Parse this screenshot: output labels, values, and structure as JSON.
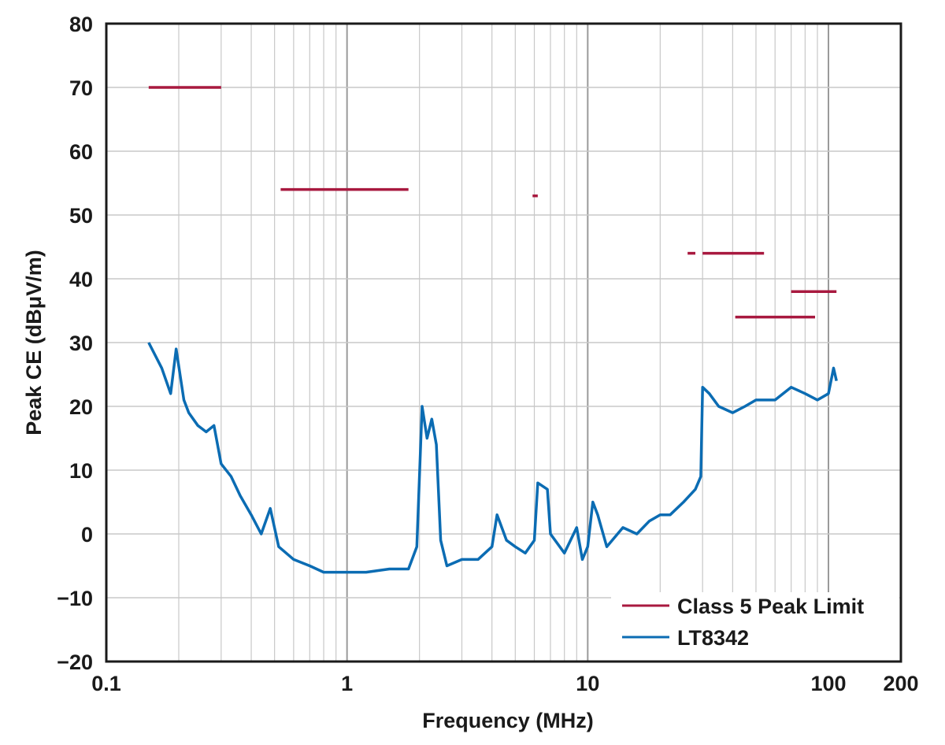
{
  "chart_data": {
    "type": "line",
    "xlabel": "Frequency (MHz)",
    "ylabel": "Peak CE (dBμV/m)",
    "x_scale": "log",
    "xlim": [
      0.1,
      200
    ],
    "ylim": [
      -20,
      80
    ],
    "x_ticks": [
      0.1,
      1,
      10,
      100,
      200
    ],
    "x_tick_labels": [
      "0.1",
      "1",
      "10",
      "100",
      "200"
    ],
    "y_ticks": [
      -20,
      -10,
      0,
      10,
      20,
      30,
      40,
      50,
      60,
      70,
      80
    ],
    "y_tick_labels": [
      "−20",
      "−10",
      "0",
      "10",
      "20",
      "30",
      "40",
      "50",
      "60",
      "70",
      "80"
    ],
    "grid": true,
    "legend_position": "bottom-right",
    "colors": {
      "limit": "#a8193f",
      "measurement": "#0b6cb3",
      "grid": "#c8c8c8",
      "axis": "#1a1a1a"
    },
    "series": [
      {
        "name": "Class 5 Peak Limit",
        "style": "segments",
        "segments": [
          {
            "x_start": 0.15,
            "x_end": 0.3,
            "y": 70
          },
          {
            "x_start": 0.53,
            "x_end": 1.8,
            "y": 54
          },
          {
            "x_start": 5.9,
            "x_end": 6.2,
            "y": 53
          },
          {
            "x_start": 26,
            "x_end": 28,
            "y": 44
          },
          {
            "x_start": 30,
            "x_end": 54,
            "y": 44
          },
          {
            "x_start": 41,
            "x_end": 88,
            "y": 34
          },
          {
            "x_start": 70,
            "x_end": 108,
            "y": 38
          }
        ]
      },
      {
        "name": "LT8342",
        "style": "line",
        "points": [
          [
            0.15,
            30
          ],
          [
            0.17,
            26
          ],
          [
            0.185,
            22
          ],
          [
            0.195,
            29
          ],
          [
            0.21,
            21
          ],
          [
            0.22,
            19
          ],
          [
            0.24,
            17
          ],
          [
            0.26,
            16
          ],
          [
            0.28,
            17
          ],
          [
            0.3,
            11
          ],
          [
            0.33,
            9
          ],
          [
            0.36,
            6
          ],
          [
            0.4,
            3
          ],
          [
            0.44,
            0
          ],
          [
            0.48,
            4
          ],
          [
            0.52,
            -2
          ],
          [
            0.6,
            -4
          ],
          [
            0.7,
            -5
          ],
          [
            0.8,
            -6
          ],
          [
            0.9,
            -6
          ],
          [
            1.0,
            -6
          ],
          [
            1.2,
            -6
          ],
          [
            1.5,
            -5.5
          ],
          [
            1.8,
            -5.5
          ],
          [
            1.95,
            -2
          ],
          [
            2.05,
            20
          ],
          [
            2.15,
            15
          ],
          [
            2.25,
            18
          ],
          [
            2.35,
            14
          ],
          [
            2.45,
            -1
          ],
          [
            2.6,
            -5
          ],
          [
            3.0,
            -4
          ],
          [
            3.5,
            -4
          ],
          [
            4.0,
            -2
          ],
          [
            4.2,
            3
          ],
          [
            4.6,
            -1
          ],
          [
            5.0,
            -2
          ],
          [
            5.5,
            -3
          ],
          [
            6.0,
            -1
          ],
          [
            6.2,
            8
          ],
          [
            6.8,
            7
          ],
          [
            7.0,
            0
          ],
          [
            8.0,
            -3
          ],
          [
            9.0,
            1
          ],
          [
            9.5,
            -4
          ],
          [
            10.0,
            -2
          ],
          [
            10.5,
            5
          ],
          [
            11.0,
            3
          ],
          [
            12.0,
            -2
          ],
          [
            14.0,
            1
          ],
          [
            16.0,
            0
          ],
          [
            18.0,
            2
          ],
          [
            20.0,
            3
          ],
          [
            22.0,
            3
          ],
          [
            25.0,
            5
          ],
          [
            28.0,
            7
          ],
          [
            29.5,
            9
          ],
          [
            30.0,
            23
          ],
          [
            32.0,
            22
          ],
          [
            35.0,
            20
          ],
          [
            40.0,
            19
          ],
          [
            45.0,
            20
          ],
          [
            50.0,
            21
          ],
          [
            60.0,
            21
          ],
          [
            70.0,
            23
          ],
          [
            80.0,
            22
          ],
          [
            90.0,
            21
          ],
          [
            100.0,
            22
          ],
          [
            105.0,
            26
          ],
          [
            108.0,
            24
          ]
        ]
      }
    ]
  }
}
